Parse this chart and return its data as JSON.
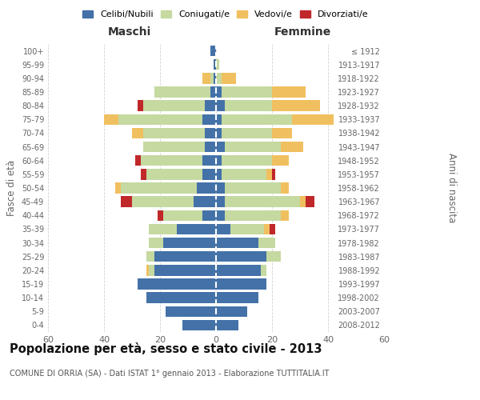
{
  "age_groups": [
    "0-4",
    "5-9",
    "10-14",
    "15-19",
    "20-24",
    "25-29",
    "30-34",
    "35-39",
    "40-44",
    "45-49",
    "50-54",
    "55-59",
    "60-64",
    "65-69",
    "70-74",
    "75-79",
    "80-84",
    "85-89",
    "90-94",
    "95-99",
    "100+"
  ],
  "birth_years": [
    "2008-2012",
    "2003-2007",
    "1998-2002",
    "1993-1997",
    "1988-1992",
    "1983-1987",
    "1978-1982",
    "1973-1977",
    "1968-1972",
    "1963-1967",
    "1958-1962",
    "1953-1957",
    "1948-1952",
    "1943-1947",
    "1938-1942",
    "1933-1937",
    "1928-1932",
    "1923-1927",
    "1918-1922",
    "1913-1917",
    "≤ 1912"
  ],
  "maschi": {
    "celibi": [
      12,
      18,
      25,
      28,
      22,
      22,
      19,
      14,
      5,
      8,
      7,
      5,
      5,
      4,
      4,
      5,
      4,
      2,
      1,
      1,
      2
    ],
    "coniugati": [
      0,
      0,
      0,
      0,
      2,
      3,
      5,
      10,
      14,
      22,
      27,
      20,
      22,
      22,
      22,
      30,
      22,
      20,
      1,
      0,
      0
    ],
    "vedovi": [
      0,
      0,
      0,
      0,
      1,
      0,
      0,
      0,
      0,
      0,
      2,
      0,
      0,
      0,
      4,
      5,
      0,
      0,
      3,
      0,
      0
    ],
    "divorziati": [
      0,
      0,
      0,
      0,
      0,
      0,
      0,
      0,
      2,
      4,
      0,
      2,
      2,
      0,
      0,
      0,
      2,
      0,
      0,
      0,
      0
    ]
  },
  "femmine": {
    "nubili": [
      8,
      11,
      15,
      18,
      16,
      18,
      15,
      5,
      3,
      3,
      3,
      2,
      2,
      3,
      2,
      2,
      3,
      2,
      0,
      0,
      0
    ],
    "coniugate": [
      0,
      0,
      0,
      0,
      2,
      5,
      6,
      12,
      20,
      27,
      20,
      16,
      18,
      20,
      18,
      25,
      17,
      18,
      2,
      1,
      0
    ],
    "vedove": [
      0,
      0,
      0,
      0,
      0,
      0,
      0,
      2,
      3,
      2,
      3,
      2,
      6,
      8,
      7,
      15,
      17,
      12,
      5,
      0,
      0
    ],
    "divorziate": [
      0,
      0,
      0,
      0,
      0,
      0,
      0,
      2,
      0,
      3,
      0,
      1,
      0,
      0,
      0,
      0,
      0,
      0,
      0,
      0,
      0
    ]
  },
  "color_celibi": "#4472a8",
  "color_coniugati": "#c5d9a0",
  "color_vedovi": "#f0c060",
  "color_divorziati": "#c0282a",
  "title": "Popolazione per età, sesso e stato civile - 2013",
  "subtitle": "COMUNE DI ORRIA (SA) - Dati ISTAT 1° gennaio 2013 - Elaborazione TUTTITALIA.IT",
  "xlabel_left": "Maschi",
  "xlabel_right": "Femmine",
  "ylabel_left": "Fasce di età",
  "ylabel_right": "Anni di nascita",
  "xlim": 60,
  "background_color": "#ffffff",
  "grid_color": "#cccccc"
}
